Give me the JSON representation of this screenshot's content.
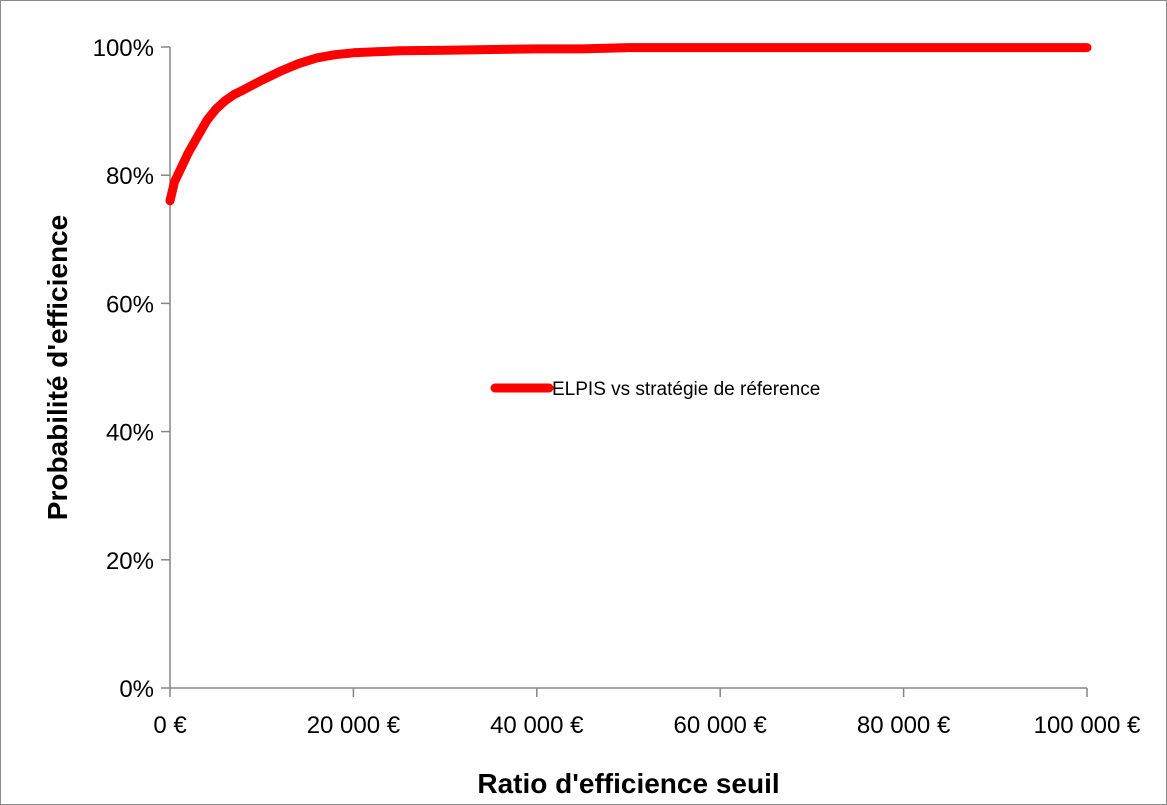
{
  "chart_data": {
    "type": "line",
    "title": "",
    "xlabel": "Ratio d'efficience seuil",
    "ylabel": "Probabilité d'efficience",
    "xlim": [
      0,
      100000
    ],
    "ylim": [
      0,
      1
    ],
    "x_ticks": [
      0,
      20000,
      40000,
      60000,
      80000,
      100000
    ],
    "x_tick_labels": [
      "0 €",
      "20 000 €",
      "40 000 €",
      "60 000 €",
      "80 000 €",
      "100 000 €"
    ],
    "y_ticks": [
      0,
      0.2,
      0.4,
      0.6,
      0.8,
      1.0
    ],
    "y_tick_labels": [
      "0%",
      "20%",
      "40%",
      "60%",
      "80%",
      "100%"
    ],
    "grid": false,
    "legend_position": "center",
    "series": [
      {
        "name": "ELPIS vs stratégie de réference",
        "color": "#ff0000",
        "x": [
          0,
          500,
          1000,
          2000,
          3000,
          4000,
          5000,
          6000,
          7000,
          8000,
          10000,
          12000,
          14000,
          16000,
          18000,
          20000,
          25000,
          30000,
          40000,
          45000,
          50000,
          60000,
          70000,
          80000,
          90000,
          100000
        ],
        "y": [
          0.76,
          0.79,
          0.805,
          0.835,
          0.86,
          0.885,
          0.903,
          0.916,
          0.926,
          0.933,
          0.948,
          0.962,
          0.974,
          0.983,
          0.988,
          0.991,
          0.994,
          0.995,
          0.997,
          0.997,
          0.999,
          0.999,
          0.999,
          0.999,
          0.999,
          0.999
        ]
      }
    ]
  }
}
